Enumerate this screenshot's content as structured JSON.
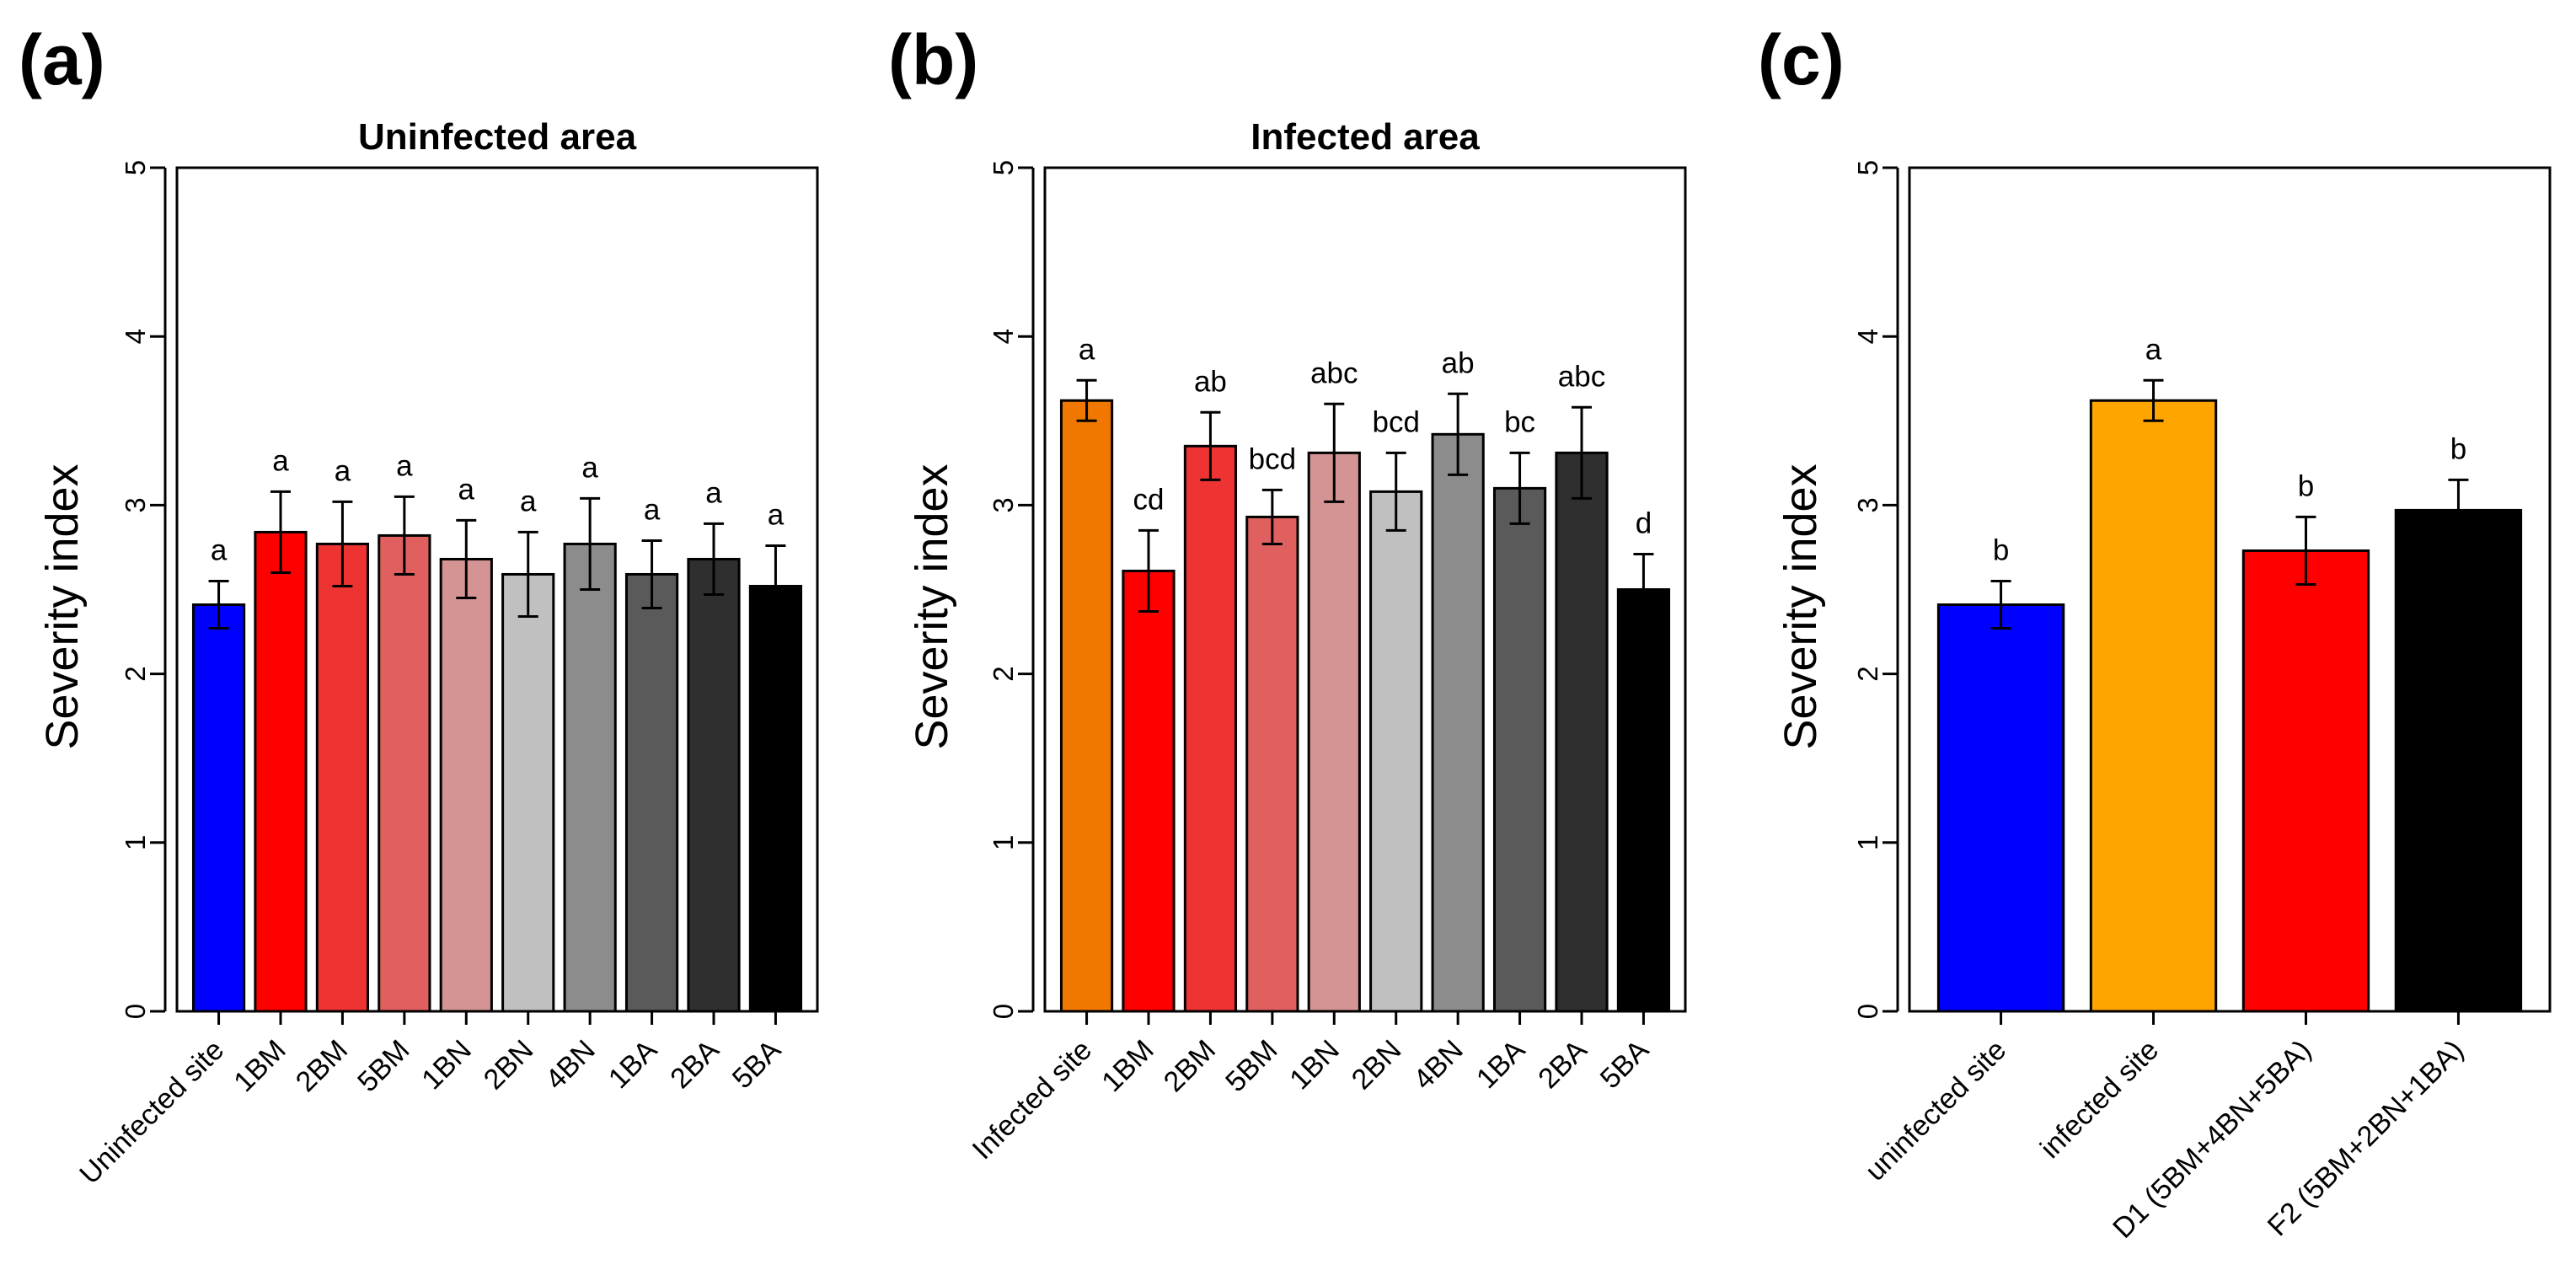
{
  "chart_data": [
    {
      "type": "bar",
      "panel": "(a)",
      "title": "Uninfected area",
      "xlabel": "",
      "ylabel": "Severity index",
      "ylim": [
        0,
        5
      ],
      "yticks": [
        "0",
        "1",
        "2",
        "3",
        "4",
        "5"
      ],
      "categories": [
        "Uninfected site",
        "1BM",
        "2BM",
        "5BM",
        "1BN",
        "2BN",
        "4BN",
        "1BA",
        "2BA",
        "5BA"
      ],
      "values": [
        2.41,
        2.84,
        2.77,
        2.82,
        2.68,
        2.59,
        2.77,
        2.59,
        2.68,
        2.52
      ],
      "errors": [
        0.14,
        0.24,
        0.25,
        0.23,
        0.23,
        0.25,
        0.27,
        0.2,
        0.21,
        0.24
      ],
      "labels": [
        "a",
        "a",
        "a",
        "a",
        "a",
        "a",
        "a",
        "a",
        "a",
        "a"
      ],
      "colors": [
        "#0000ff",
        "#ff0000",
        "#ee3333",
        "#e06060",
        "#d49494",
        "#c0c0c0",
        "#8c8c8c",
        "#5a5a5a",
        "#2f2f2f",
        "#000000"
      ]
    },
    {
      "type": "bar",
      "panel": "(b)",
      "title": "Infected area",
      "xlabel": "",
      "ylabel": "Severity index",
      "ylim": [
        0,
        5
      ],
      "yticks": [
        "0",
        "1",
        "2",
        "3",
        "4",
        "5"
      ],
      "categories": [
        "Infected site",
        "1BM",
        "2BM",
        "5BM",
        "1BN",
        "2BN",
        "4BN",
        "1BA",
        "2BA",
        "5BA"
      ],
      "values": [
        3.62,
        2.61,
        3.35,
        2.93,
        3.31,
        3.08,
        3.42,
        3.1,
        3.31,
        2.5
      ],
      "errors": [
        0.12,
        0.24,
        0.2,
        0.16,
        0.29,
        0.23,
        0.24,
        0.21,
        0.27,
        0.21
      ],
      "labels": [
        "a",
        "cd",
        "ab",
        "bcd",
        "abc",
        "bcd",
        "ab",
        "bc",
        "abc",
        "d"
      ],
      "colors": [
        "#f07800",
        "#ff0000",
        "#ee3333",
        "#e06060",
        "#d49494",
        "#c0c0c0",
        "#8c8c8c",
        "#5a5a5a",
        "#2f2f2f",
        "#000000"
      ]
    },
    {
      "type": "bar",
      "panel": "(c)",
      "title": "",
      "xlabel": "",
      "ylabel": "Severity index",
      "ylim": [
        0,
        5
      ],
      "yticks": [
        "0",
        "1",
        "2",
        "3",
        "4",
        "5"
      ],
      "categories": [
        "uninfected site",
        "infected site",
        "D1 (5BM+4BN+5BA)",
        "F2 (5BM+2BN+1BA)"
      ],
      "values": [
        2.41,
        3.62,
        2.73,
        2.97
      ],
      "errors": [
        0.14,
        0.12,
        0.2,
        0.18
      ],
      "labels": [
        "b",
        "a",
        "b",
        "b"
      ],
      "colors": [
        "#0000ff",
        "#ffa500",
        "#ff0000",
        "#000000"
      ]
    }
  ]
}
